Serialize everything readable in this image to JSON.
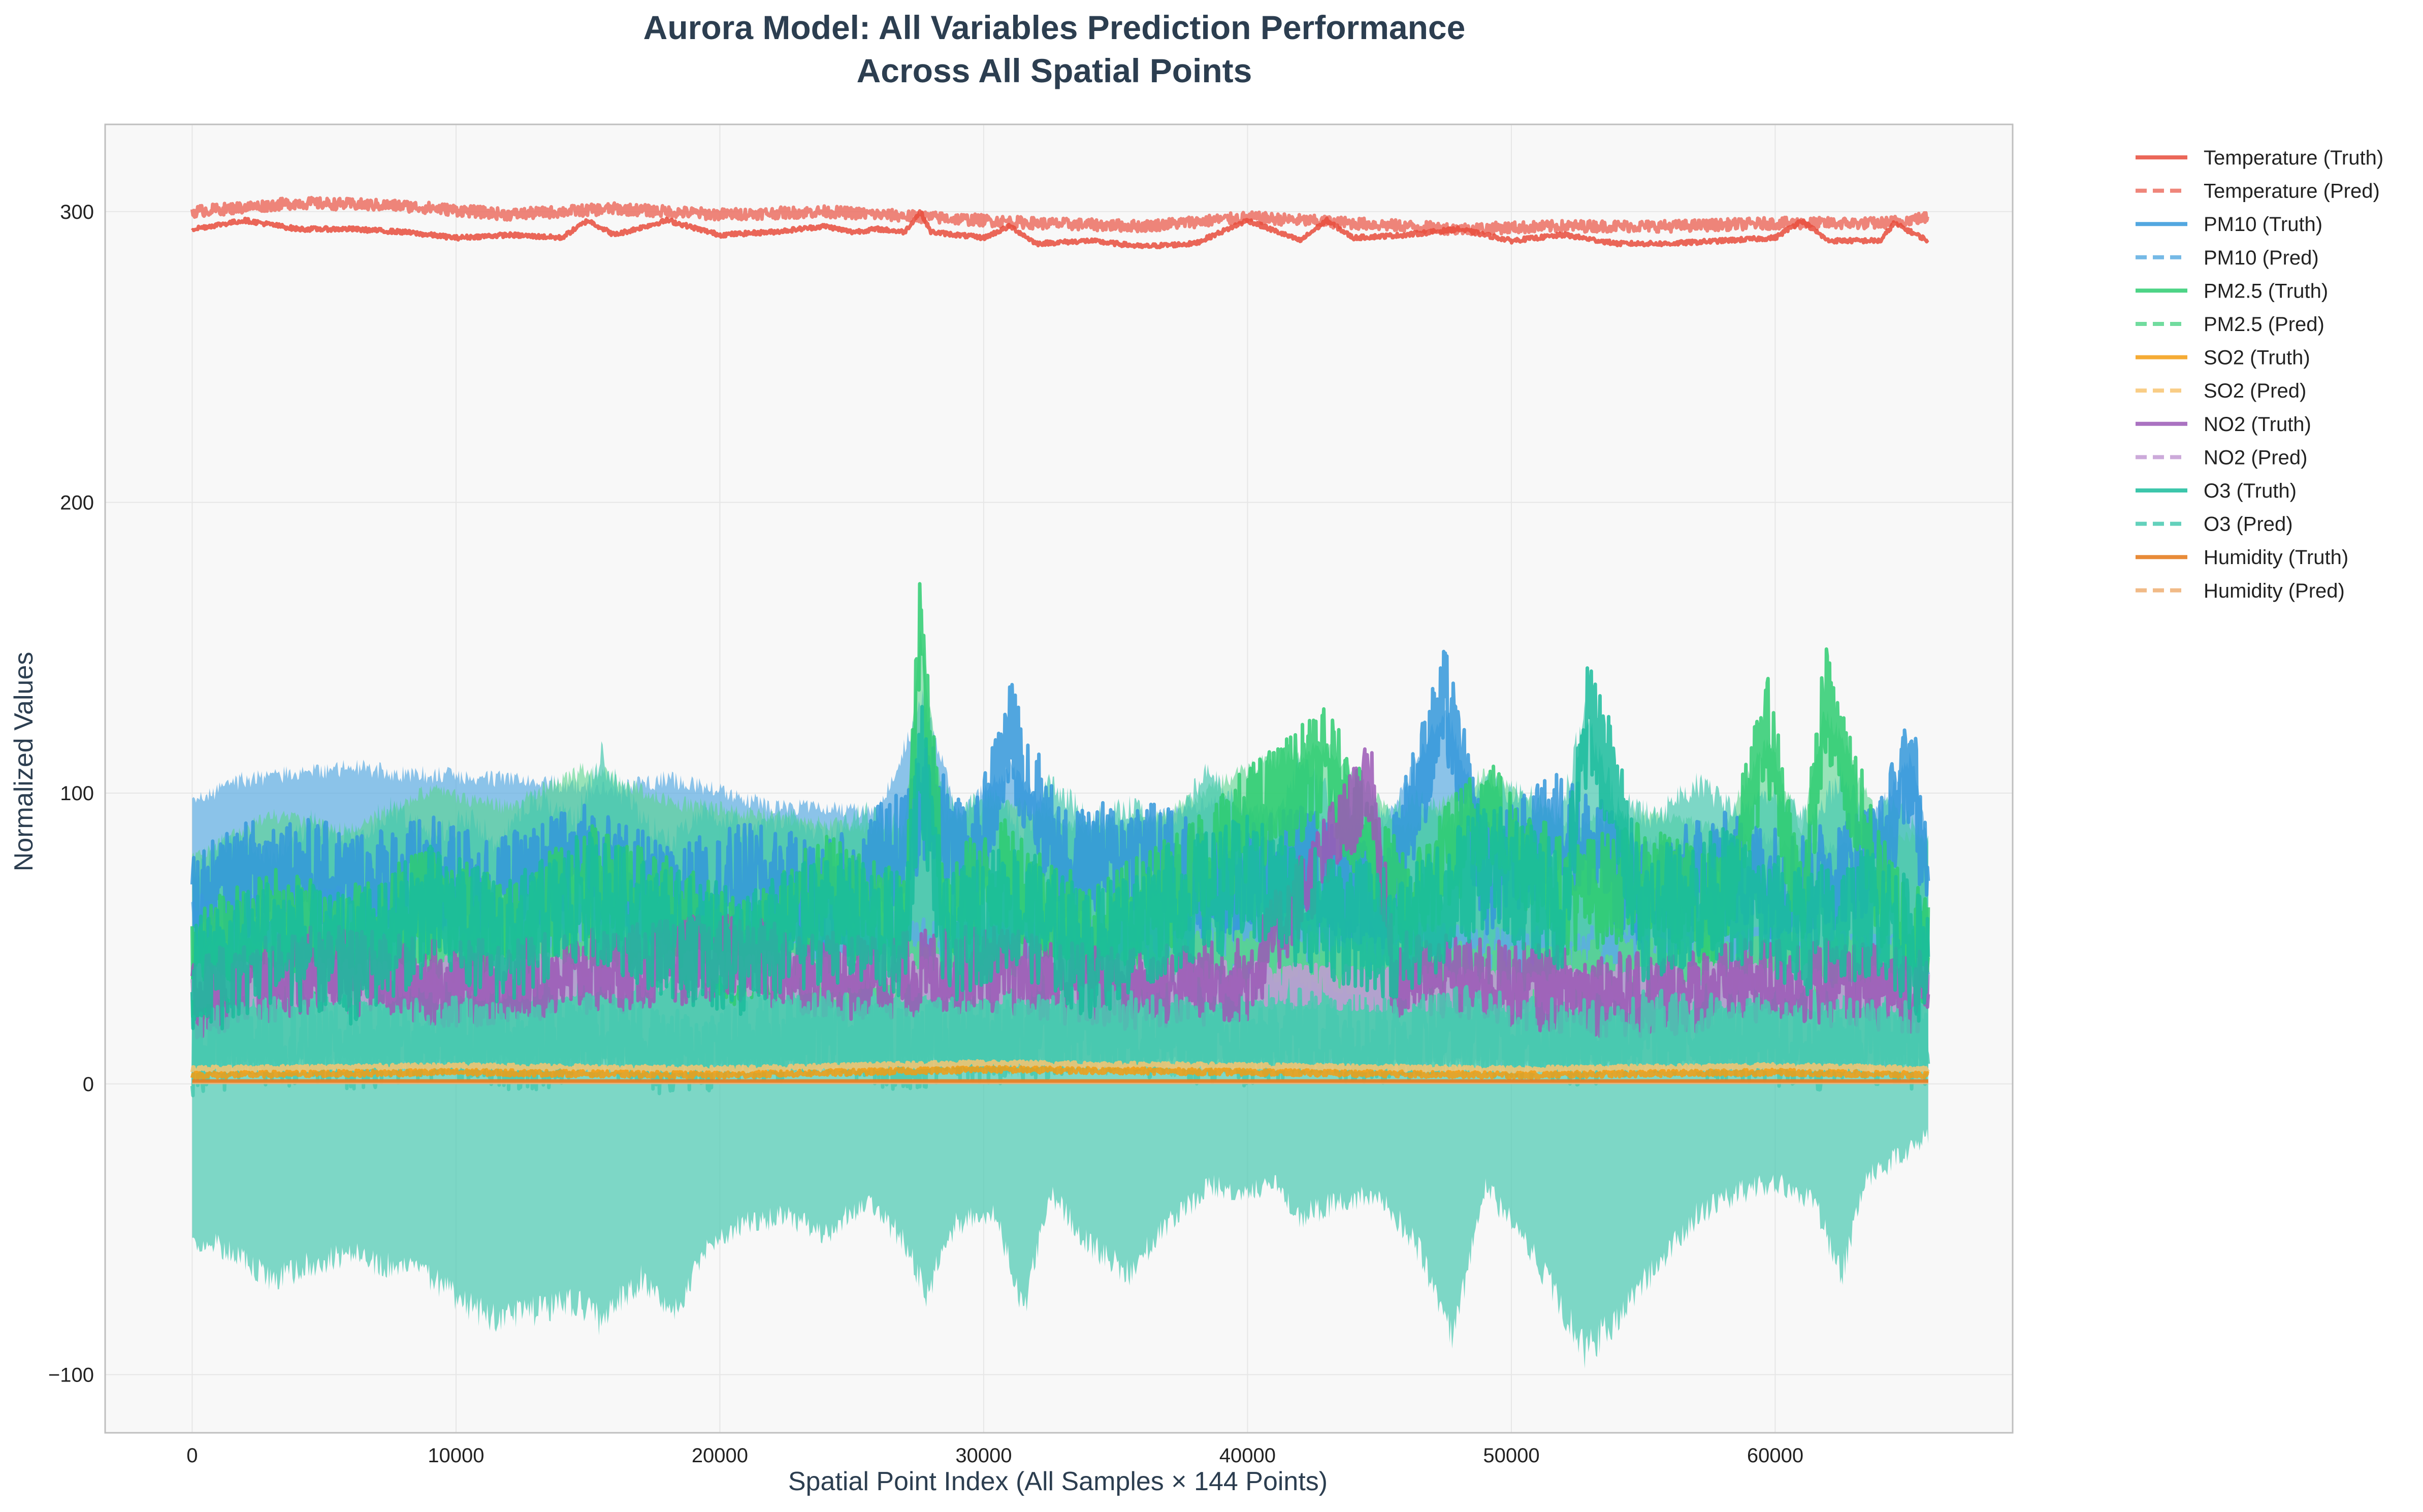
{
  "chart_data": {
    "type": "line",
    "title": "Aurora Model: All Variables Prediction Performance",
    "subtitle": "Across All Spatial Points",
    "xlabel": "Spatial Point Index (All Samples × 144 Points)",
    "ylabel": "Normalized Values",
    "xlim": [
      -3300,
      69000
    ],
    "ylim": [
      -120,
      330
    ],
    "xticks": [
      0,
      10000,
      20000,
      30000,
      40000,
      50000,
      60000
    ],
    "xtick_labels": [
      "0",
      "10000",
      "20000",
      "30000",
      "40000",
      "50000",
      "60000"
    ],
    "yticks": [
      -100,
      0,
      100,
      200,
      300
    ],
    "ytick_labels": [
      "−100",
      "0",
      "100",
      "200",
      "300"
    ],
    "grid": true,
    "legend_position": "outside-right",
    "background": "#f8f8f8",
    "series": [
      {
        "name": "Temperature (Truth)",
        "style": "solid",
        "color": "#e74c3c",
        "opacity": 0.85,
        "width": 7,
        "x": [
          0,
          2000,
          4000,
          6000,
          8000,
          10000,
          12000,
          14000,
          15000,
          16000,
          18000,
          20000,
          22000,
          24000,
          25000,
          26000,
          27000,
          27600,
          28000,
          30000,
          31000,
          32000,
          34000,
          36000,
          38000,
          40000,
          42000,
          43000,
          44000,
          46000,
          48000,
          50000,
          52000,
          54000,
          56000,
          58000,
          60000,
          61000,
          62000,
          64000,
          64500,
          65800
        ],
        "y": [
          294,
          297,
          294,
          294,
          293,
          291,
          292,
          291,
          297,
          292,
          297,
          292,
          293,
          295,
          293,
          294,
          293,
          300,
          293,
          291,
          295,
          289,
          290,
          288,
          289,
          297,
          290,
          297,
          291,
          292,
          294,
          290,
          292,
          289,
          289,
          290,
          291,
          297,
          290,
          290,
          296,
          290
        ]
      },
      {
        "name": "Temperature (Pred)",
        "style": "dashed",
        "color": "#ec7063",
        "opacity": 0.85,
        "width": 7,
        "band": "temp",
        "x": [
          0,
          4000,
          8000,
          12000,
          16000,
          20000,
          24000,
          28000,
          32000,
          36000,
          40000,
          44000,
          48000,
          52000,
          56000,
          60000,
          64000,
          65800
        ],
        "y": [
          300,
          303,
          302,
          299,
          301,
          299,
          300,
          298,
          296,
          295,
          298,
          296,
          294,
          295,
          295,
          296,
          296,
          298
        ]
      },
      {
        "name": "PM10 (Truth)",
        "style": "solid",
        "color": "#3498db",
        "opacity": 0.85,
        "width": 7,
        "x": [
          0,
          3000,
          6000,
          9000,
          12000,
          15000,
          18000,
          21000,
          24000,
          27000,
          28000,
          29500,
          31000,
          33000,
          36000,
          39000,
          42000,
          45000,
          47500,
          49000,
          52000,
          55000,
          58000,
          61000,
          64000,
          65200,
          65800
        ],
        "y": [
          60,
          75,
          68,
          72,
          66,
          78,
          62,
          70,
          64,
          82,
          100,
          70,
          120,
          74,
          80,
          66,
          78,
          60,
          131,
          70,
          90,
          64,
          74,
          68,
          80,
          112,
          60
        ]
      },
      {
        "name": "PM10 (Pred)",
        "style": "dashed",
        "color": "#5dade2",
        "opacity": 0.85,
        "width": 7,
        "band": "pm10",
        "x": [
          0,
          5000,
          10000,
          15000,
          20000,
          25000,
          30000,
          35000,
          40000,
          45000,
          50000,
          55000,
          60000,
          65800
        ],
        "y": [
          55,
          58,
          56,
          55,
          52,
          50,
          48,
          46,
          48,
          46,
          44,
          45,
          44,
          42
        ]
      },
      {
        "name": "PM2.5 (Truth)",
        "style": "solid",
        "color": "#2ecc71",
        "opacity": 0.85,
        "width": 7,
        "x": [
          0,
          3000,
          6000,
          9000,
          12000,
          15000,
          18000,
          21000,
          24000,
          27000,
          27600,
          28500,
          31000,
          34000,
          37000,
          40000,
          43000,
          46000,
          49000,
          52000,
          55000,
          58000,
          59700,
          61000,
          61900,
          64000,
          65800
        ],
        "y": [
          40,
          55,
          48,
          62,
          50,
          70,
          58,
          45,
          66,
          52,
          158,
          60,
          72,
          48,
          66,
          90,
          110,
          58,
          95,
          64,
          70,
          58,
          122,
          60,
          132,
          66,
          45
        ]
      },
      {
        "name": "PM2.5 (Pred)",
        "style": "dashed",
        "color": "#58d68d",
        "opacity": 0.85,
        "width": 7,
        "band": "pm25",
        "x": [
          0,
          5000,
          10000,
          15000,
          20000,
          25000,
          30000,
          35000,
          40000,
          45000,
          50000,
          55000,
          60000,
          65800
        ],
        "y": [
          40,
          42,
          44,
          46,
          40,
          38,
          42,
          40,
          44,
          40,
          38,
          40,
          42,
          40
        ]
      },
      {
        "name": "SO2 (Truth)",
        "style": "solid",
        "color": "#f39c12",
        "opacity": 0.85,
        "width": 7,
        "x": [
          0,
          10000,
          20000,
          30000,
          40000,
          50000,
          60000,
          65800
        ],
        "y": [
          3,
          4,
          3,
          5,
          4,
          3,
          4,
          3
        ]
      },
      {
        "name": "SO2 (Pred)",
        "style": "dashed",
        "color": "#f8c471",
        "opacity": 0.85,
        "width": 7,
        "x": [
          0,
          10000,
          20000,
          30000,
          40000,
          50000,
          60000,
          65800
        ],
        "y": [
          5,
          6,
          5,
          7,
          6,
          5,
          6,
          5
        ]
      },
      {
        "name": "NO2 (Truth)",
        "style": "solid",
        "color": "#9b59b6",
        "opacity": 0.85,
        "width": 7,
        "x": [
          0,
          5000,
          10000,
          15000,
          20000,
          25000,
          30000,
          35000,
          40000,
          44700,
          45500,
          50000,
          55000,
          60000,
          65800
        ],
        "y": [
          30,
          40,
          34,
          38,
          44,
          36,
          40,
          32,
          36,
          104,
          38,
          34,
          30,
          36,
          32
        ]
      },
      {
        "name": "NO2 (Pred)",
        "style": "dashed",
        "color": "#c39bd3",
        "opacity": 0.85,
        "width": 7,
        "x": [
          0,
          10000,
          20000,
          30000,
          40000,
          50000,
          60000,
          65800
        ],
        "y": [
          34,
          36,
          38,
          36,
          34,
          32,
          34,
          32
        ]
      },
      {
        "name": "O3 (Truth)",
        "style": "solid",
        "color": "#1abc9c",
        "opacity": 0.85,
        "width": 7,
        "x": [
          0,
          3000,
          6000,
          9000,
          12000,
          15000,
          18000,
          21000,
          24000,
          27000,
          27600,
          28500,
          31000,
          34000,
          37000,
          40000,
          43000,
          46000,
          49000,
          52000,
          53000,
          55000,
          58000,
          61000,
          64000,
          65800
        ],
        "y": [
          35,
          50,
          42,
          60,
          48,
          65,
          52,
          44,
          58,
          50,
          115,
          48,
          62,
          44,
          60,
          70,
          58,
          50,
          76,
          60,
          130,
          58,
          66,
          52,
          60,
          40
        ]
      },
      {
        "name": "O3 (Pred)",
        "style": "dashed",
        "color": "#48c9b0",
        "opacity": 0.85,
        "width": 7,
        "band": "o3",
        "x": [
          0,
          3000,
          6000,
          9000,
          11000,
          13000,
          15500,
          18000,
          21000,
          24000,
          27000,
          29000,
          31500,
          34000,
          37000,
          40000,
          42000,
          45000,
          48000,
          50000,
          52800,
          55000,
          58000,
          61500,
          63000,
          65800
        ],
        "y": [
          10,
          15,
          12,
          16,
          14,
          12,
          18,
          10,
          14,
          18,
          12,
          16,
          14,
          20,
          16,
          12,
          18,
          14,
          20,
          16,
          14,
          18,
          16,
          12,
          16,
          12
        ]
      },
      {
        "name": "Humidity (Truth)",
        "style": "solid",
        "color": "#e67e22",
        "opacity": 0.9,
        "width": 7,
        "x": [
          0,
          65800
        ],
        "y": [
          1,
          1
        ]
      },
      {
        "name": "Humidity (Pred)",
        "style": "dashed",
        "color": "#f0b27a",
        "opacity": 0.9,
        "width": 7,
        "x": [
          0,
          65800
        ],
        "y": [
          0.5,
          0.5
        ]
      }
    ],
    "bands": {
      "temp": {
        "color": "#ec7063",
        "opacity": 0.75,
        "x": [
          0,
          2000,
          4000,
          6000,
          8000,
          10000,
          12000,
          14000,
          15000,
          16000,
          18000,
          20000,
          22000,
          24000,
          26000,
          27600,
          28000,
          29000,
          30000,
          31000,
          32000,
          34000,
          36000,
          38000,
          40000,
          42000,
          44000,
          46000,
          48000,
          50000,
          52000,
          54000,
          56000,
          58000,
          60000,
          62000,
          64000,
          65000,
          65800
        ],
        "upper": [
          307,
          308,
          309,
          308,
          307,
          305,
          305,
          304,
          306,
          305,
          304,
          303,
          302,
          304,
          303,
          306,
          304,
          303,
          302,
          304,
          303,
          302,
          301,
          302,
          304,
          303,
          301,
          300,
          302,
          299,
          300,
          301,
          301,
          300,
          301,
          300,
          301,
          308,
          299
        ],
        "lower": [
          293,
          293,
          293,
          293,
          292,
          290,
          291,
          290,
          292,
          290,
          292,
          290,
          291,
          292,
          290,
          290,
          288,
          284,
          286,
          283,
          286,
          286,
          285,
          287,
          286,
          287,
          285,
          285,
          284,
          284,
          285,
          287,
          286,
          287,
          287,
          288,
          288,
          287,
          288
        ]
      },
      "pm10": {
        "color": "#5dade2",
        "opacity": 0.7,
        "x": [
          0,
          2000,
          4000,
          6000,
          8000,
          10000,
          12000,
          14000,
          16000,
          18000,
          20000,
          22000,
          24000,
          26000,
          27700,
          29000,
          31000,
          33000,
          35000,
          37000,
          39000,
          41000,
          43000,
          45000,
          47500,
          49000,
          51000,
          53000,
          55000,
          57000,
          59000,
          61000,
          63000,
          65200,
          65800
        ],
        "upper": [
          100,
          108,
          110,
          112,
          110,
          109,
          108,
          106,
          104,
          108,
          104,
          98,
          98,
          96,
          136,
          96,
          112,
          92,
          90,
          96,
          100,
          96,
          92,
          90,
          133,
          90,
          88,
          86,
          86,
          84,
          88,
          84,
          84,
          116,
          84
        ],
        "lower": [
          3,
          4,
          3,
          4,
          3,
          3,
          4,
          3,
          4,
          3,
          3,
          4,
          3,
          4,
          3,
          4,
          3,
          4,
          3,
          4,
          3,
          4,
          3,
          4,
          3,
          4,
          3,
          4,
          3,
          4,
          3,
          4,
          3,
          4,
          3
        ]
      },
      "pm25": {
        "color": "#58d68d",
        "opacity": 0.6,
        "x": [
          0,
          3000,
          6000,
          9000,
          12000,
          15000,
          18000,
          21000,
          24000,
          27000,
          27600,
          28500,
          31000,
          34000,
          37000,
          40000,
          43000,
          46000,
          49000,
          52000,
          55000,
          58000,
          59700,
          61000,
          61900,
          64000,
          65800
        ],
        "upper": [
          80,
          95,
          90,
          104,
          98,
          112,
          100,
          96,
          92,
          90,
          160,
          95,
          100,
          90,
          96,
          112,
          120,
          90,
          110,
          92,
          96,
          90,
          122,
          90,
          133,
          92,
          85
        ],
        "lower": [
          2,
          3,
          2,
          3,
          2,
          3,
          2,
          3,
          2,
          3,
          2,
          3,
          2,
          3,
          2,
          3,
          2,
          3,
          2,
          3,
          2,
          3,
          2,
          3,
          2,
          3,
          2
        ]
      },
      "o3": {
        "color": "#48c9b0",
        "opacity": 0.7,
        "x": [
          0,
          1500,
          3000,
          4500,
          6000,
          7500,
          9000,
          10500,
          11500,
          13000,
          14500,
          15500,
          17000,
          18200,
          19500,
          21000,
          22500,
          24000,
          25500,
          27000,
          27800,
          29000,
          30500,
          31500,
          32500,
          34000,
          35500,
          37000,
          38500,
          40000,
          41000,
          42000,
          43500,
          45000,
          46500,
          47800,
          49000,
          50500,
          51800,
          52800,
          54000,
          55500,
          57000,
          58500,
          60000,
          61500,
          62500,
          63500,
          64500,
          65800
        ],
        "upper": [
          75,
          90,
          82,
          95,
          88,
          100,
          92,
          96,
          88,
          104,
          95,
          118,
          96,
          88,
          100,
          92,
          96,
          90,
          98,
          92,
          114,
          98,
          104,
          90,
          108,
          96,
          100,
          92,
          112,
          96,
          92,
          115,
          100,
          98,
          102,
          95,
          108,
          104,
          98,
          134,
          102,
          96,
          108,
          98,
          104,
          96,
          112,
          96,
          100,
          88
        ],
        "lower": [
          -57,
          -62,
          -72,
          -67,
          -63,
          -68,
          -71,
          -82,
          -86,
          -84,
          -80,
          -88,
          -72,
          -86,
          -60,
          -52,
          -50,
          -56,
          -45,
          -58,
          -78,
          -52,
          -50,
          -84,
          -42,
          -60,
          -70,
          -52,
          -40,
          -42,
          -38,
          -50,
          -45,
          -42,
          -62,
          -93,
          -40,
          -58,
          -80,
          -100,
          -86,
          -68,
          -50,
          -42,
          -38,
          -45,
          -72,
          -36,
          -30,
          -21
        ]
      }
    }
  }
}
